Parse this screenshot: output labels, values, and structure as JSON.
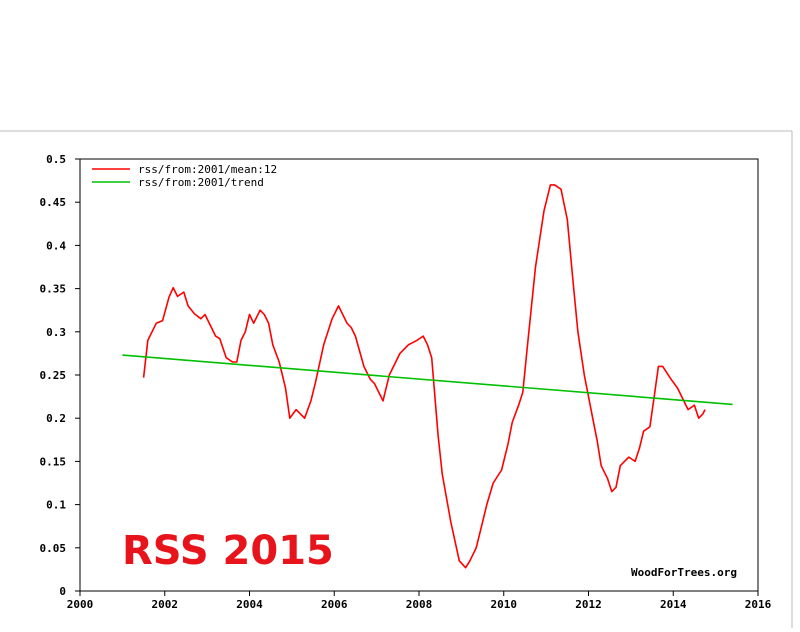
{
  "stamp_text": "RSS 2015",
  "watermark": "WoodForTrees.org",
  "chart_data": {
    "type": "line",
    "title": "",
    "xlabel": "",
    "ylabel": "",
    "xlim": [
      2000,
      2016
    ],
    "ylim": [
      0,
      0.5
    ],
    "x_ticks": [
      2000,
      2002,
      2004,
      2006,
      2008,
      2010,
      2012,
      2014,
      2016
    ],
    "x_tick_labels": [
      "2000",
      "2002",
      "2004",
      "2006",
      "2008",
      "2010",
      "2012",
      "2014",
      "2016"
    ],
    "y_ticks": [
      0,
      0.05,
      0.1,
      0.15,
      0.2,
      0.25,
      0.3,
      0.35,
      0.4,
      0.45,
      0.5
    ],
    "y_tick_labels": [
      "0",
      "0.05",
      "0.1",
      "0.15",
      "0.2",
      "0.25",
      "0.3",
      "0.35",
      "0.4",
      "0.45",
      "0.5"
    ],
    "grid": false,
    "legend_position": "top-left",
    "series": [
      {
        "name": "rss/from:2001/mean:12",
        "color": "#ff0000",
        "x": [
          2001.5,
          2001.6,
          2001.8,
          2001.95,
          2002.1,
          2002.2,
          2002.3,
          2002.45,
          2002.55,
          2002.7,
          2002.85,
          2002.95,
          2003.1,
          2003.2,
          2003.3,
          2003.45,
          2003.6,
          2003.7,
          2003.8,
          2003.9,
          2004.0,
          2004.1,
          2004.25,
          2004.35,
          2004.45,
          2004.55,
          2004.7,
          2004.85,
          2004.95,
          2005.1,
          2005.3,
          2005.45,
          2005.55,
          2005.75,
          2005.95,
          2006.1,
          2006.3,
          2006.4,
          2006.5,
          2006.7,
          2006.85,
          2006.95,
          2007.15,
          2007.3,
          2007.45,
          2007.55,
          2007.75,
          2007.95,
          2008.1,
          2008.2,
          2008.3,
          2008.45,
          2008.55,
          2008.75,
          2008.95,
          2009.1,
          2009.2,
          2009.35,
          2009.5,
          2009.6,
          2009.75,
          2009.95,
          2010.1,
          2010.2,
          2010.35,
          2010.45,
          2010.55,
          2010.75,
          2010.95,
          2011.1,
          2011.2,
          2011.35,
          2011.5,
          2011.65,
          2011.75,
          2011.9,
          2012.1,
          2012.2,
          2012.3,
          2012.45,
          2012.55,
          2012.65,
          2012.75,
          2012.95,
          2013.1,
          2013.2,
          2013.3,
          2013.45,
          2013.55,
          2013.65,
          2013.75,
          2013.95,
          2014.1,
          2014.2,
          2014.35,
          2014.5,
          2014.6,
          2014.7,
          2014.75
        ],
        "y": [
          0.247,
          0.29,
          0.31,
          0.313,
          0.34,
          0.351,
          0.341,
          0.346,
          0.33,
          0.321,
          0.315,
          0.32,
          0.305,
          0.295,
          0.292,
          0.27,
          0.265,
          0.265,
          0.29,
          0.3,
          0.32,
          0.31,
          0.325,
          0.32,
          0.31,
          0.285,
          0.265,
          0.235,
          0.2,
          0.21,
          0.2,
          0.22,
          0.24,
          0.285,
          0.315,
          0.33,
          0.31,
          0.305,
          0.295,
          0.26,
          0.245,
          0.24,
          0.22,
          0.25,
          0.265,
          0.275,
          0.285,
          0.29,
          0.295,
          0.285,
          0.27,
          0.18,
          0.135,
          0.08,
          0.035,
          0.027,
          0.035,
          0.05,
          0.08,
          0.1,
          0.125,
          0.14,
          0.17,
          0.195,
          0.215,
          0.23,
          0.28,
          0.375,
          0.44,
          0.47,
          0.47,
          0.465,
          0.43,
          0.35,
          0.3,
          0.25,
          0.2,
          0.175,
          0.145,
          0.13,
          0.115,
          0.12,
          0.145,
          0.155,
          0.15,
          0.165,
          0.185,
          0.19,
          0.225,
          0.26,
          0.26,
          0.245,
          0.235,
          0.225,
          0.21,
          0.215,
          0.2,
          0.205,
          0.21
        ]
      },
      {
        "name": "rss/from:2001/trend",
        "color": "#00c000",
        "x": [
          2001.0,
          2015.4
        ],
        "y": [
          0.273,
          0.216
        ]
      }
    ]
  }
}
